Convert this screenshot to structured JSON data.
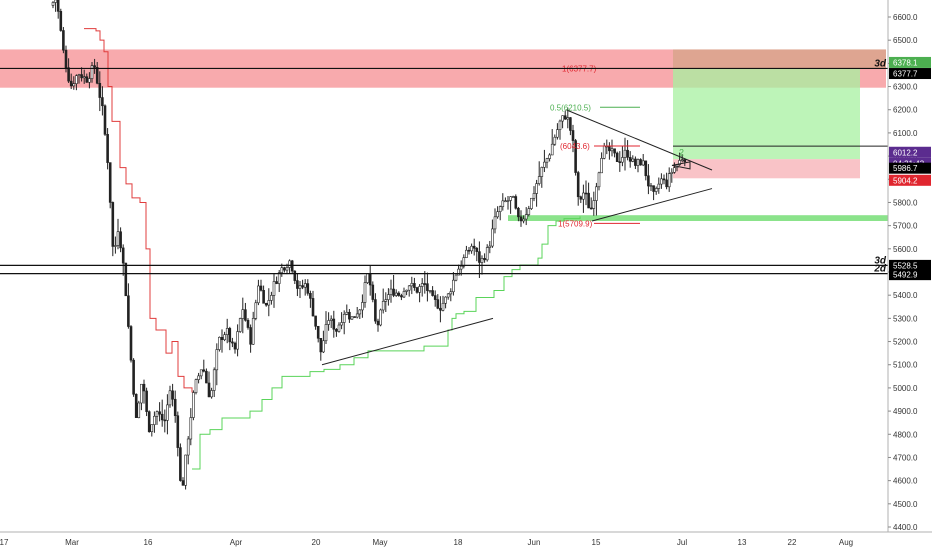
{
  "chart_data": {
    "type": "candlestick",
    "title": "",
    "xlabel": "",
    "ylabel": "",
    "ylim": [
      4380,
      6700
    ],
    "grid": false,
    "x_tick_labels": [
      "17",
      "Mar",
      "16",
      "Apr",
      "20",
      "May",
      "18",
      "Jun",
      "15",
      "Jul",
      "13",
      "22",
      "Aug"
    ],
    "y_tick_labels": [
      "6600.0",
      "6500.0",
      "6400.0",
      "6300.0",
      "6200.0",
      "6100.0",
      "6000.0",
      "5900.0",
      "5800.0",
      "5700.0",
      "5600.0",
      "5500.0",
      "5400.0",
      "5300.0",
      "5200.0",
      "5100.0",
      "5000.0",
      "4900.0",
      "4800.0",
      "4700.0",
      "4600.0",
      "4500.0",
      "4400.0"
    ],
    "horizontal_levels": [
      {
        "value": 6378.1,
        "timeframe_label": "3d",
        "tag": "6378.1",
        "tag_color": "#4caf50"
      },
      {
        "value": 5528.5,
        "timeframe_label": "3d",
        "tag": "5528.5",
        "tag_color": "#000000"
      },
      {
        "value": 5492.9,
        "timeframe_label": "2d",
        "tag": "5492.9",
        "tag_color": "#000000"
      }
    ],
    "zones": [
      {
        "name": "resistance",
        "top": 6460,
        "bottom": 6295,
        "color": "#f7a1a4"
      },
      {
        "name": "support",
        "top": 5745,
        "bottom": 5720,
        "color": "#7ee07e"
      }
    ],
    "position": {
      "entry": 5986.7,
      "target": 6377.7,
      "stop": 5904.2
    },
    "price_tags": [
      {
        "label": "6377.7",
        "color": "#000000"
      },
      {
        "label": "6012.2",
        "color": "#5b2c8f"
      },
      {
        "label": "04:31:43",
        "color": "#5b2c8f"
      },
      {
        "label": "5986.7",
        "color": "#000000"
      },
      {
        "label": "5904.2",
        "color": "#e0262f"
      }
    ],
    "fib_labels": [
      {
        "text": "1(6377.7)",
        "value": 6377.7,
        "color": "#e0262f"
      },
      {
        "text": "0.5(6210.5)",
        "value": 6210.5,
        "color": "#4caf50"
      },
      {
        "text": "(6043.6)",
        "value": 6043.6,
        "color": "#e0262f"
      },
      {
        "text": "1(5709.9)",
        "value": 5709.9,
        "color": "#e0262f"
      }
    ],
    "pattern_label": "2",
    "series": [
      {
        "name": "",
        "kind": "candles"
      },
      {
        "name": "",
        "kind": "trailing-stop",
        "color": "#e03c3c"
      },
      {
        "name": "",
        "kind": "trailing-stop",
        "color": "#5ad45a"
      }
    ]
  }
}
